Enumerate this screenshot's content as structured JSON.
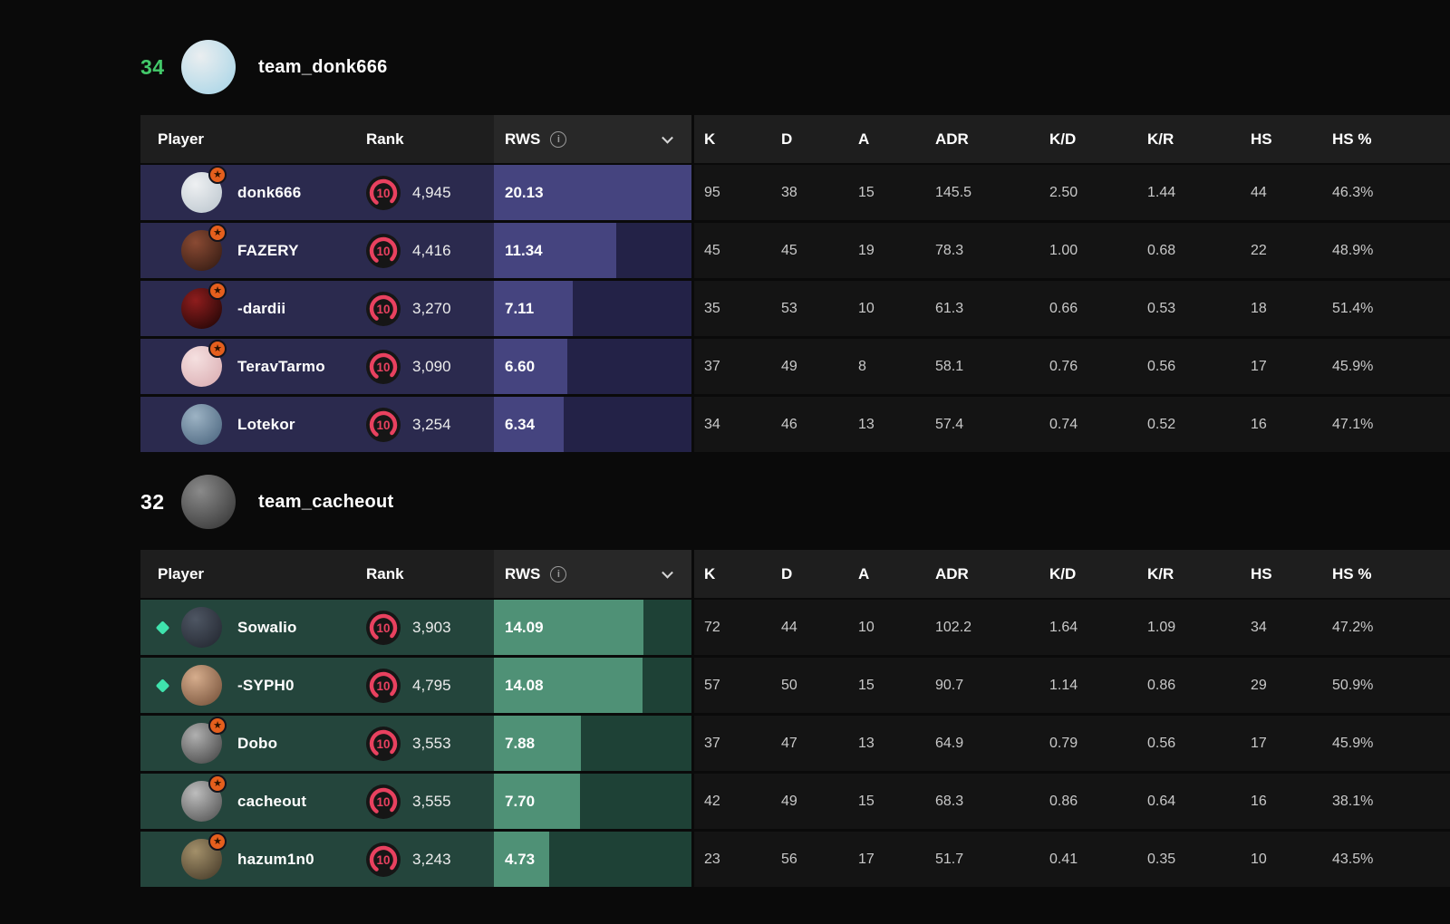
{
  "columns": {
    "player": "Player",
    "rank": "Rank",
    "rws": "RWS",
    "k": "K",
    "d": "D",
    "a": "A",
    "adr": "ADR",
    "kd": "K/D",
    "kr": "K/R",
    "hs": "HS",
    "hs_pct": "HS %"
  },
  "icons": {
    "star": "★",
    "info": "i"
  },
  "teams": [
    {
      "score": "34",
      "score_color": "#43c96a",
      "name": "team_donk666",
      "theme": {
        "row_bg": "#2b2a4e",
        "cell_bg": "#232247",
        "bar": "#45447f"
      },
      "avatar": {
        "c1": "#eaeef0",
        "c2": "#a3d3e6"
      },
      "players": [
        {
          "name": "donk666",
          "star": true,
          "diamond": false,
          "rank_level": "10",
          "rating": "4,945",
          "rws": "20.13",
          "bar_pct": 100,
          "k": "95",
          "d": "38",
          "a": "15",
          "adr": "145.5",
          "kd": "2.50",
          "kr": "1.44",
          "hs": "44",
          "hs_pct": "46.3%",
          "avatar": {
            "c1": "#eef0f2",
            "c2": "#b9c4cc"
          }
        },
        {
          "name": "FAZERY",
          "star": true,
          "diamond": false,
          "rank_level": "10",
          "rating": "4,416",
          "rws": "11.34",
          "bar_pct": 62,
          "k": "45",
          "d": "45",
          "a": "19",
          "adr": "78.3",
          "kd": "1.00",
          "kr": "0.68",
          "hs": "22",
          "hs_pct": "48.9%",
          "avatar": {
            "c1": "#8a4a33",
            "c2": "#2c1710"
          }
        },
        {
          "name": "-dardii",
          "star": true,
          "diamond": false,
          "rank_level": "10",
          "rating": "3,270",
          "rws": "7.11",
          "bar_pct": 40,
          "k": "35",
          "d": "53",
          "a": "10",
          "adr": "61.3",
          "kd": "0.66",
          "kr": "0.53",
          "hs": "18",
          "hs_pct": "51.4%",
          "avatar": {
            "c1": "#8f1d1d",
            "c2": "#170404"
          }
        },
        {
          "name": "TeravTarmo",
          "star": true,
          "diamond": false,
          "rank_level": "10",
          "rating": "3,090",
          "rws": "6.60",
          "bar_pct": 37,
          "k": "37",
          "d": "49",
          "a": "8",
          "adr": "58.1",
          "kd": "0.76",
          "kr": "0.56",
          "hs": "17",
          "hs_pct": "45.9%",
          "avatar": {
            "c1": "#f5e0e0",
            "c2": "#d8a9ae"
          }
        },
        {
          "name": "Lotekor",
          "star": false,
          "diamond": false,
          "rank_level": "10",
          "rating": "3,254",
          "rws": "6.34",
          "bar_pct": 35.5,
          "k": "34",
          "d": "46",
          "a": "13",
          "adr": "57.4",
          "kd": "0.74",
          "kr": "0.52",
          "hs": "16",
          "hs_pct": "47.1%",
          "avatar": {
            "c1": "#9db3c4",
            "c2": "#45607a"
          }
        }
      ]
    },
    {
      "score": "32",
      "score_color": "#ffffff",
      "name": "team_cacheout",
      "theme": {
        "row_bg": "#24453c",
        "cell_bg": "#1e4136",
        "bar": "#4f9176"
      },
      "avatar": {
        "c1": "#8a8a8a",
        "c2": "#2e2e2e"
      },
      "players": [
        {
          "name": "Sowalio",
          "star": false,
          "diamond": true,
          "rank_level": "10",
          "rating": "3,903",
          "rws": "14.09",
          "bar_pct": 75.5,
          "k": "72",
          "d": "44",
          "a": "10",
          "adr": "102.2",
          "kd": "1.64",
          "kr": "1.09",
          "hs": "34",
          "hs_pct": "47.2%",
          "avatar": {
            "c1": "#4e5663",
            "c2": "#1f232c"
          }
        },
        {
          "name": "-SYPH0",
          "star": false,
          "diamond": true,
          "rank_level": "10",
          "rating": "4,795",
          "rws": "14.08",
          "bar_pct": 75,
          "k": "57",
          "d": "50",
          "a": "15",
          "adr": "90.7",
          "kd": "1.14",
          "kr": "0.86",
          "hs": "29",
          "hs_pct": "50.9%",
          "avatar": {
            "c1": "#d6ad8d",
            "c2": "#6e4a33"
          }
        },
        {
          "name": "Dobo",
          "star": true,
          "diamond": false,
          "rank_level": "10",
          "rating": "3,553",
          "rws": "7.88",
          "bar_pct": 44,
          "k": "37",
          "d": "47",
          "a": "13",
          "adr": "64.9",
          "kd": "0.79",
          "kr": "0.56",
          "hs": "17",
          "hs_pct": "45.9%",
          "avatar": {
            "c1": "#b0b0b0",
            "c2": "#3d3d3d"
          }
        },
        {
          "name": "cacheout",
          "star": true,
          "diamond": false,
          "rank_level": "10",
          "rating": "3,555",
          "rws": "7.70",
          "bar_pct": 43.5,
          "k": "42",
          "d": "49",
          "a": "15",
          "adr": "68.3",
          "kd": "0.86",
          "kr": "0.64",
          "hs": "16",
          "hs_pct": "38.1%",
          "avatar": {
            "c1": "#bdbdbd",
            "c2": "#4a4a4a"
          }
        },
        {
          "name": "hazum1n0",
          "star": true,
          "diamond": false,
          "rank_level": "10",
          "rating": "3,243",
          "rws": "4.73",
          "bar_pct": 28,
          "k": "23",
          "d": "56",
          "a": "17",
          "adr": "51.7",
          "kd": "0.41",
          "kr": "0.35",
          "hs": "10",
          "hs_pct": "43.5%",
          "avatar": {
            "c1": "#a3906a",
            "c2": "#3f3424"
          }
        }
      ]
    }
  ]
}
